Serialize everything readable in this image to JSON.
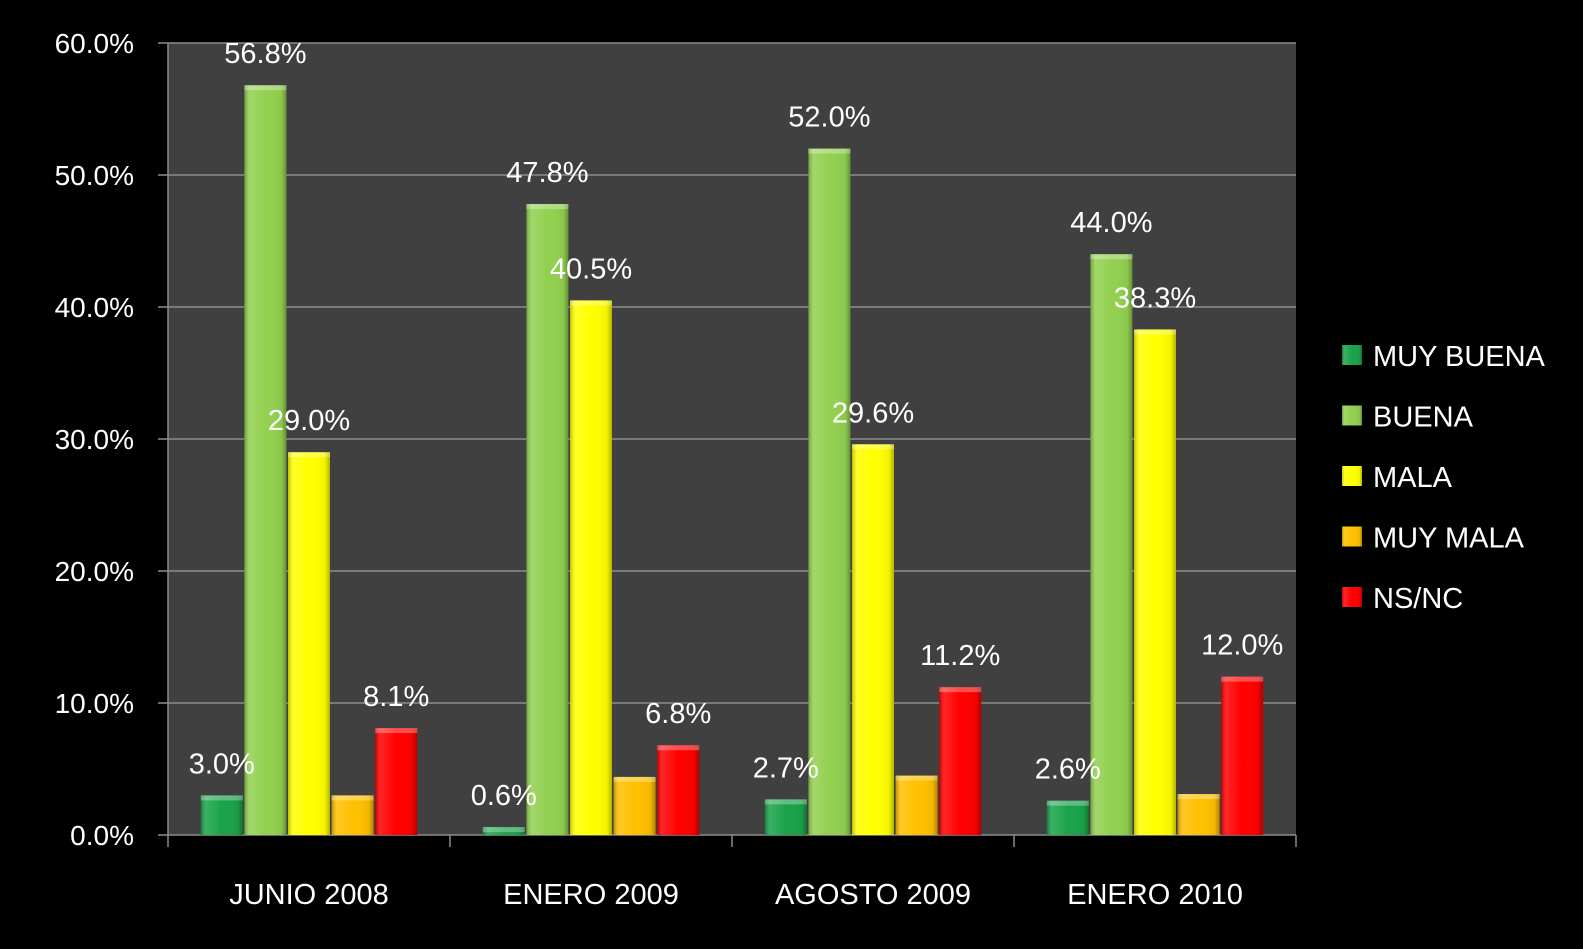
{
  "chart_data": {
    "type": "bar",
    "categories": [
      "JUNIO 2008",
      "ENERO 2009",
      "AGOSTO 2009",
      "ENERO 2010"
    ],
    "series": [
      {
        "name": "MUY BUENA",
        "color": "#1aa34a",
        "values": [
          3.0,
          0.6,
          2.7,
          2.6
        ],
        "labels": [
          "3.0%",
          "0.6%",
          "2.7%",
          "2.6%"
        ]
      },
      {
        "name": "BUENA",
        "color": "#92d050",
        "values": [
          56.8,
          47.8,
          52.0,
          44.0
        ],
        "labels": [
          "56.8%",
          "47.8%",
          "52.0%",
          "44.0%"
        ]
      },
      {
        "name": "MALA",
        "color": "#ffff00",
        "values": [
          29.0,
          40.5,
          29.6,
          38.3
        ],
        "labels": [
          "29.0%",
          "40.5%",
          "29.6%",
          "38.3%"
        ]
      },
      {
        "name": "MUY MALA",
        "color": "#ffc000",
        "values": [
          3.0,
          4.4,
          4.5,
          3.1
        ],
        "labels": [
          "",
          "",
          "",
          ""
        ]
      },
      {
        "name": "NS/NC",
        "color": "#ff0000",
        "values": [
          8.1,
          6.8,
          11.2,
          12.0
        ],
        "labels": [
          "8.1%",
          "6.8%",
          "11.2%",
          "12.0%"
        ]
      }
    ],
    "yticks": [
      "0.0%",
      "10.0%",
      "20.0%",
      "30.0%",
      "40.0%",
      "50.0%",
      "60.0%"
    ],
    "ylim": [
      0,
      60
    ],
    "grid": true,
    "legend": "right",
    "plot_background": "#404040",
    "page_background": "#000000"
  }
}
